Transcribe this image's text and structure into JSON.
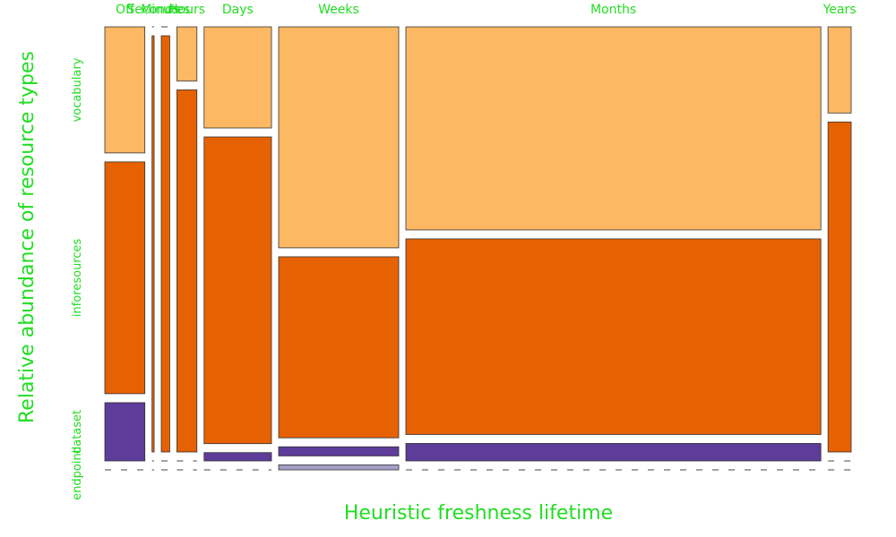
{
  "chart_data": {
    "type": "mosaic",
    "xlabel": "Heuristic freshness lifetime",
    "ylabel": "Relative abundance of resource types",
    "categories": [
      "Off",
      "Seconds",
      "Minutes",
      "Hours",
      "Days",
      "Weeks",
      "Months",
      "Years"
    ],
    "column_widths": [
      0.038,
      0.002,
      0.008,
      0.019,
      0.064,
      0.114,
      0.394,
      0.022
    ],
    "rows": [
      "endpoint",
      "dataset",
      "inforesources",
      "vocabulary"
    ],
    "series": [
      {
        "name": "endpoint",
        "values": [
          0.0,
          0.0,
          0.0,
          0.0,
          0.0,
          0.012,
          0.0,
          0.0
        ]
      },
      {
        "name": "dataset",
        "values": [
          0.14,
          0.0,
          0.0,
          0.0,
          0.02,
          0.022,
          0.042,
          0.0
        ]
      },
      {
        "name": "inforesources",
        "values": [
          0.557,
          1.0,
          1.0,
          0.87,
          0.737,
          0.435,
          0.47,
          0.793
        ]
      },
      {
        "name": "vocabulary",
        "values": [
          0.303,
          0.0,
          0.0,
          0.13,
          0.243,
          0.531,
          0.488,
          0.207
        ]
      }
    ],
    "colors": {
      "endpoint": "#a6a0c8",
      "dataset": "#5e3c99",
      "inforesources": "#e66101",
      "vocabulary": "#fdb863"
    },
    "label_color": "#22dd22"
  }
}
